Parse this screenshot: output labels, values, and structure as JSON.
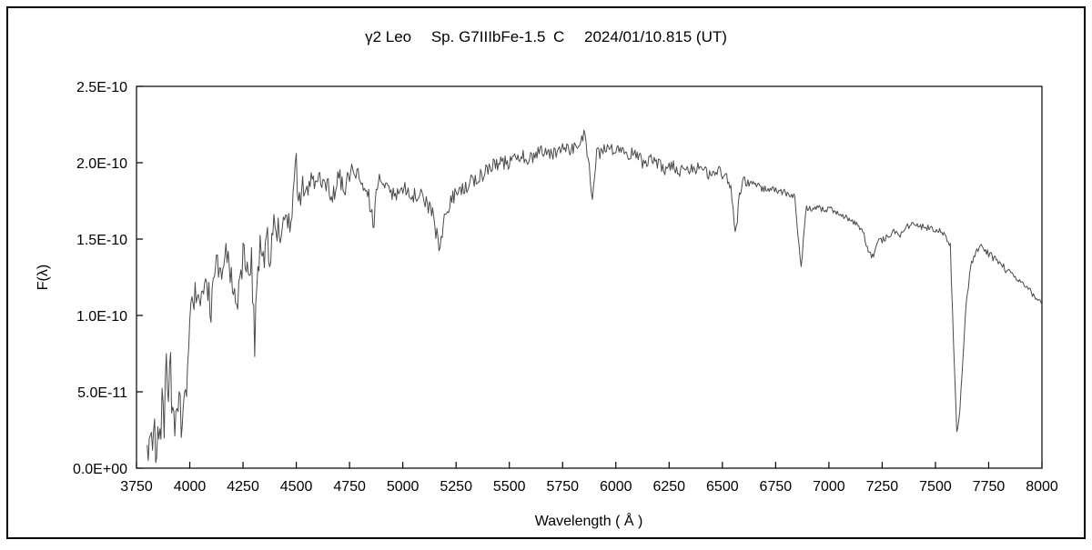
{
  "chart_data": {
    "type": "line",
    "title": "γ2 Leo　 Sp. G7IIIbFe-1.5 C　 2024/01/10.815 (UT)",
    "xlabel": "Wavelength ( Å )",
    "ylabel": "F(λ)",
    "xlim": [
      3750,
      8000
    ],
    "ylim_1e10": [
      0,
      2.5
    ],
    "flux_scale": "1e-10",
    "grid": false,
    "legend": "none",
    "line_color": "#4a4a4a",
    "x_ticks": [
      3750,
      4000,
      4250,
      4500,
      4750,
      5000,
      5250,
      5500,
      5750,
      6000,
      6250,
      6500,
      6750,
      7000,
      7250,
      7500,
      7750,
      8000
    ],
    "y_ticks": [
      {
        "value_1e10": 0.0,
        "label": "0.0E+00"
      },
      {
        "value_1e10": 0.5,
        "label": "5.0E-11"
      },
      {
        "value_1e10": 1.0,
        "label": "1.0E-10"
      },
      {
        "value_1e10": 1.5,
        "label": "1.5E-10"
      },
      {
        "value_1e10": 2.0,
        "label": "2.0E-10"
      },
      {
        "value_1e10": 2.5,
        "label": "2.5E-10"
      }
    ],
    "sample_step": 5,
    "noise_profile": [
      [
        3800,
        0.16
      ],
      [
        3980,
        0.14
      ],
      [
        4050,
        0.1
      ],
      [
        4240,
        0.12
      ],
      [
        4480,
        0.11
      ],
      [
        4520,
        0.07
      ],
      [
        5000,
        0.06
      ],
      [
        5400,
        0.05
      ],
      [
        5900,
        0.045
      ],
      [
        6300,
        0.04
      ],
      [
        6600,
        0.03
      ],
      [
        6900,
        0.02
      ],
      [
        7200,
        0.02
      ],
      [
        7560,
        0.02
      ],
      [
        7600,
        0.03
      ],
      [
        7700,
        0.025
      ],
      [
        8000,
        0.02
      ]
    ],
    "series": [
      {
        "name": "gamma2-leo-spectrum",
        "points_wavelength_flux1e10": [
          [
            3800,
            0.12
          ],
          [
            3810,
            0.2
          ],
          [
            3820,
            0.08
          ],
          [
            3830,
            0.22
          ],
          [
            3840,
            0.12
          ],
          [
            3850,
            0.28
          ],
          [
            3860,
            0.15
          ],
          [
            3870,
            0.45
          ],
          [
            3880,
            0.3
          ],
          [
            3890,
            0.72
          ],
          [
            3900,
            0.45
          ],
          [
            3910,
            0.62
          ],
          [
            3920,
            0.3
          ],
          [
            3933,
            0.25
          ],
          [
            3950,
            0.38
          ],
          [
            3968,
            0.3
          ],
          [
            3985,
            0.55
          ],
          [
            4000,
            0.95
          ],
          [
            4020,
            1.15
          ],
          [
            4045,
            1.18
          ],
          [
            4063,
            1.05
          ],
          [
            4080,
            1.22
          ],
          [
            4101,
            1.05
          ],
          [
            4120,
            1.3
          ],
          [
            4150,
            1.28
          ],
          [
            4170,
            1.4
          ],
          [
            4200,
            1.25
          ],
          [
            4226,
            1.05
          ],
          [
            4250,
            1.42
          ],
          [
            4270,
            1.25
          ],
          [
            4290,
            1.35
          ],
          [
            4305,
            0.78
          ],
          [
            4315,
            1.2
          ],
          [
            4330,
            1.45
          ],
          [
            4340,
            1.3
          ],
          [
            4360,
            1.55
          ],
          [
            4380,
            1.35
          ],
          [
            4400,
            1.65
          ],
          [
            4420,
            1.5
          ],
          [
            4440,
            1.7
          ],
          [
            4460,
            1.55
          ],
          [
            4480,
            1.75
          ],
          [
            4500,
            2.0
          ],
          [
            4510,
            1.7
          ],
          [
            4530,
            1.85
          ],
          [
            4550,
            1.8
          ],
          [
            4570,
            1.9
          ],
          [
            4600,
            1.85
          ],
          [
            4630,
            1.92
          ],
          [
            4668,
            1.75
          ],
          [
            4700,
            1.9
          ],
          [
            4730,
            1.85
          ],
          [
            4760,
            1.95
          ],
          [
            4800,
            1.9
          ],
          [
            4830,
            1.85
          ],
          [
            4861,
            1.58
          ],
          [
            4880,
            1.85
          ],
          [
            4900,
            1.92
          ],
          [
            4930,
            1.85
          ],
          [
            4957,
            1.78
          ],
          [
            5000,
            1.85
          ],
          [
            5040,
            1.78
          ],
          [
            5080,
            1.8
          ],
          [
            5120,
            1.72
          ],
          [
            5140,
            1.65
          ],
          [
            5170,
            1.45
          ],
          [
            5185,
            1.55
          ],
          [
            5210,
            1.7
          ],
          [
            5250,
            1.8
          ],
          [
            5300,
            1.85
          ],
          [
            5350,
            1.9
          ],
          [
            5400,
            1.95
          ],
          [
            5450,
            2.0
          ],
          [
            5500,
            2.0
          ],
          [
            5550,
            2.05
          ],
          [
            5600,
            2.02
          ],
          [
            5650,
            2.08
          ],
          [
            5700,
            2.05
          ],
          [
            5750,
            2.1
          ],
          [
            5780,
            2.08
          ],
          [
            5820,
            2.12
          ],
          [
            5850,
            2.18
          ],
          [
            5870,
            2.05
          ],
          [
            5890,
            1.78
          ],
          [
            5910,
            2.05
          ],
          [
            5950,
            2.1
          ],
          [
            6000,
            2.08
          ],
          [
            6050,
            2.05
          ],
          [
            6100,
            2.06
          ],
          [
            6130,
            1.98
          ],
          [
            6160,
            2.02
          ],
          [
            6200,
            2.0
          ],
          [
            6230,
            1.95
          ],
          [
            6270,
            1.98
          ],
          [
            6300,
            1.92
          ],
          [
            6320,
            1.98
          ],
          [
            6360,
            1.95
          ],
          [
            6400,
            1.98
          ],
          [
            6440,
            1.92
          ],
          [
            6480,
            1.95
          ],
          [
            6520,
            1.9
          ],
          [
            6540,
            1.85
          ],
          [
            6563,
            1.52
          ],
          [
            6580,
            1.8
          ],
          [
            6600,
            1.88
          ],
          [
            6650,
            1.85
          ],
          [
            6700,
            1.83
          ],
          [
            6750,
            1.82
          ],
          [
            6800,
            1.8
          ],
          [
            6840,
            1.78
          ],
          [
            6860,
            1.45
          ],
          [
            6870,
            1.3
          ],
          [
            6882,
            1.55
          ],
          [
            6895,
            1.7
          ],
          [
            6920,
            1.7
          ],
          [
            6950,
            1.72
          ],
          [
            6980,
            1.68
          ],
          [
            7000,
            1.7
          ],
          [
            7030,
            1.68
          ],
          [
            7060,
            1.65
          ],
          [
            7100,
            1.63
          ],
          [
            7130,
            1.6
          ],
          [
            7160,
            1.55
          ],
          [
            7185,
            1.42
          ],
          [
            7210,
            1.38
          ],
          [
            7230,
            1.48
          ],
          [
            7260,
            1.5
          ],
          [
            7300,
            1.55
          ],
          [
            7330,
            1.52
          ],
          [
            7360,
            1.58
          ],
          [
            7400,
            1.6
          ],
          [
            7440,
            1.58
          ],
          [
            7480,
            1.57
          ],
          [
            7520,
            1.55
          ],
          [
            7550,
            1.52
          ],
          [
            7570,
            1.45
          ],
          [
            7585,
            0.8
          ],
          [
            7600,
            0.25
          ],
          [
            7612,
            0.3
          ],
          [
            7625,
            0.6
          ],
          [
            7640,
            1.0
          ],
          [
            7655,
            1.2
          ],
          [
            7670,
            1.35
          ],
          [
            7690,
            1.42
          ],
          [
            7710,
            1.45
          ],
          [
            7740,
            1.42
          ],
          [
            7770,
            1.38
          ],
          [
            7800,
            1.35
          ],
          [
            7830,
            1.3
          ],
          [
            7860,
            1.28
          ],
          [
            7890,
            1.22
          ],
          [
            7920,
            1.2
          ],
          [
            7950,
            1.15
          ],
          [
            7975,
            1.12
          ],
          [
            8000,
            1.08
          ]
        ]
      }
    ]
  }
}
